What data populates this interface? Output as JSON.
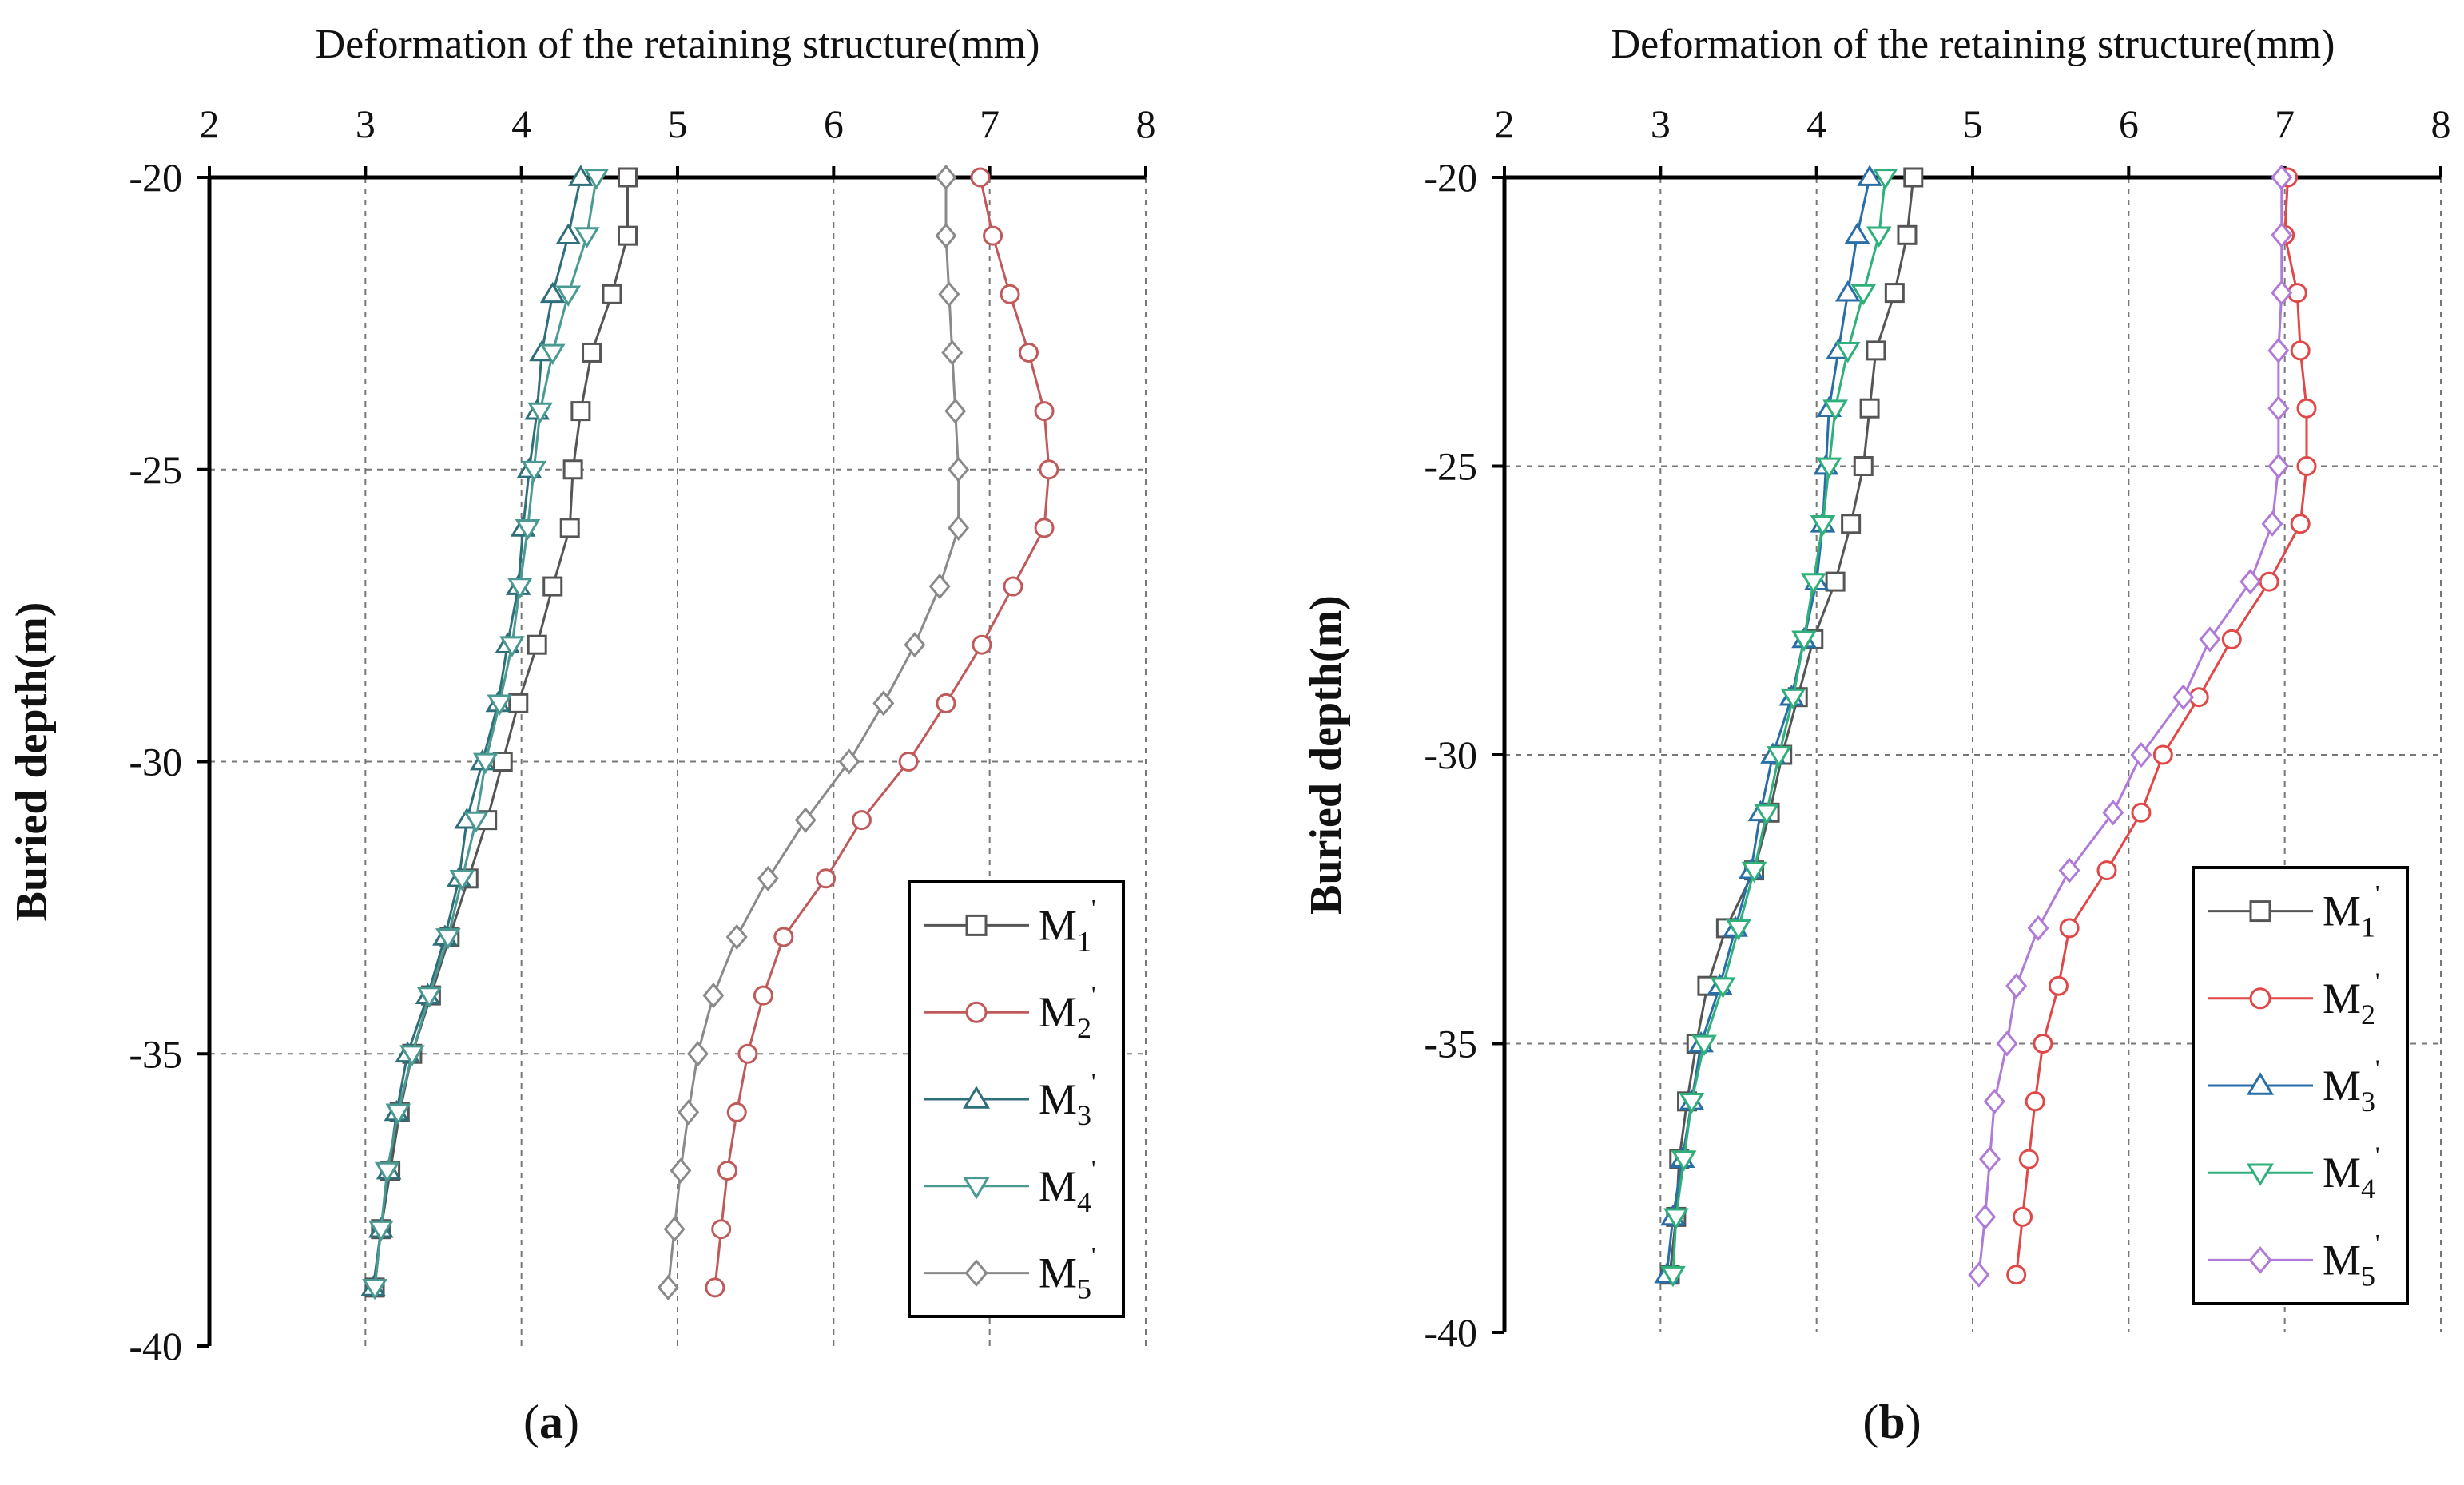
{
  "figure": {
    "panels": [
      {
        "label": "a"
      },
      {
        "label": "b"
      }
    ]
  },
  "chart_data": [
    {
      "type": "line",
      "panel_label": "(a)",
      "title": "",
      "xlabel": "Deformation of the retaining structure(mm)",
      "ylabel": "Buried depth(m)",
      "xlim": [
        2,
        8
      ],
      "ylim": [
        -40,
        -20
      ],
      "xticks": [
        2,
        3,
        4,
        5,
        6,
        7,
        8
      ],
      "yticks": [
        -20,
        -25,
        -30,
        -35,
        -40
      ],
      "grid": true,
      "legend_position": "bottom-right",
      "y": [
        -20,
        -21,
        -22,
        -23,
        -24,
        -25,
        -26,
        -27,
        -28,
        -29,
        -30,
        -31,
        -32,
        -33,
        -34,
        -35,
        -36,
        -37,
        -38,
        -39
      ],
      "series": [
        {
          "name": "M1",
          "sub": "1",
          "color": "#555555",
          "marker": "square",
          "values": [
            4.68,
            4.68,
            4.58,
            4.45,
            4.38,
            4.33,
            4.31,
            4.2,
            4.1,
            3.98,
            3.88,
            3.78,
            3.66,
            3.54,
            3.42,
            3.3,
            3.22,
            3.16,
            3.1,
            3.06
          ]
        },
        {
          "name": "M2",
          "sub": "2",
          "color": "#c05a5a",
          "marker": "circle",
          "values": [
            6.94,
            7.02,
            7.13,
            7.25,
            7.35,
            7.38,
            7.35,
            7.15,
            6.95,
            6.72,
            6.48,
            6.18,
            5.95,
            5.68,
            5.55,
            5.45,
            5.38,
            5.32,
            5.28,
            5.24
          ]
        },
        {
          "name": "M3",
          "sub": "3",
          "color": "#2f6f7a",
          "marker": "triangle-up",
          "values": [
            4.38,
            4.3,
            4.2,
            4.13,
            4.1,
            4.05,
            4.01,
            3.98,
            3.91,
            3.85,
            3.75,
            3.65,
            3.6,
            3.51,
            3.4,
            3.27,
            3.2,
            3.15,
            3.1,
            3.05
          ]
        },
        {
          "name": "M4",
          "sub": "4",
          "color": "#4a9a92",
          "marker": "triangle-down",
          "values": [
            4.48,
            4.42,
            4.3,
            4.2,
            4.12,
            4.08,
            4.04,
            3.99,
            3.94,
            3.86,
            3.77,
            3.71,
            3.62,
            3.53,
            3.41,
            3.3,
            3.21,
            3.14,
            3.1,
            3.06
          ]
        },
        {
          "name": "M5",
          "sub": "5",
          "color": "#8a8a8a",
          "marker": "diamond",
          "values": [
            6.72,
            6.72,
            6.74,
            6.76,
            6.78,
            6.8,
            6.8,
            6.68,
            6.52,
            6.32,
            6.1,
            5.82,
            5.58,
            5.38,
            5.23,
            5.13,
            5.07,
            5.02,
            4.98,
            4.94
          ]
        }
      ]
    },
    {
      "type": "line",
      "panel_label": "(b)",
      "title": "",
      "xlabel": "Deformation of the retaining structure(mm)",
      "ylabel": "Buried depth(m)",
      "xlim": [
        2,
        8
      ],
      "ylim": [
        -40,
        -20
      ],
      "xticks": [
        2,
        3,
        4,
        5,
        6,
        7,
        8
      ],
      "yticks": [
        -20,
        -25,
        -30,
        -35,
        -40
      ],
      "grid": true,
      "legend_position": "bottom-right",
      "y": [
        -20,
        -21,
        -22,
        -23,
        -24,
        -25,
        -26,
        -27,
        -28,
        -29,
        -30,
        -31,
        -32,
        -33,
        -34,
        -35,
        -36,
        -37,
        -38,
        -39
      ],
      "series": [
        {
          "name": "M1",
          "sub": "1",
          "color": "#555555",
          "marker": "square",
          "values": [
            4.62,
            4.58,
            4.5,
            4.38,
            4.34,
            4.3,
            4.22,
            4.12,
            3.98,
            3.88,
            3.78,
            3.7,
            3.6,
            3.42,
            3.3,
            3.23,
            3.17,
            3.12,
            3.1,
            3.06
          ]
        },
        {
          "name": "M2",
          "sub": "2",
          "color": "#e04848",
          "marker": "circle",
          "values": [
            7.02,
            7.0,
            7.08,
            7.1,
            7.14,
            7.14,
            7.1,
            6.9,
            6.66,
            6.45,
            6.22,
            6.08,
            5.86,
            5.62,
            5.55,
            5.45,
            5.4,
            5.36,
            5.32,
            5.28
          ]
        },
        {
          "name": "M3",
          "sub": "3",
          "color": "#2a6ea8",
          "marker": "triangle-up",
          "values": [
            4.34,
            4.26,
            4.2,
            4.14,
            4.08,
            4.06,
            4.04,
            4.0,
            3.92,
            3.84,
            3.72,
            3.64,
            3.58,
            3.48,
            3.38,
            3.26,
            3.2,
            3.14,
            3.08,
            3.04
          ]
        },
        {
          "name": "M4",
          "sub": "4",
          "color": "#2fb07a",
          "marker": "triangle-down",
          "values": [
            4.44,
            4.4,
            4.3,
            4.2,
            4.12,
            4.08,
            4.04,
            3.98,
            3.92,
            3.85,
            3.76,
            3.68,
            3.6,
            3.5,
            3.4,
            3.28,
            3.2,
            3.15,
            3.1,
            3.08
          ]
        },
        {
          "name": "M5",
          "sub": "5",
          "color": "#b07ad8",
          "marker": "diamond",
          "values": [
            6.98,
            6.98,
            6.98,
            6.96,
            6.96,
            6.96,
            6.92,
            6.78,
            6.52,
            6.35,
            6.08,
            5.9,
            5.62,
            5.42,
            5.28,
            5.22,
            5.14,
            5.11,
            5.08,
            5.04
          ]
        }
      ]
    }
  ]
}
